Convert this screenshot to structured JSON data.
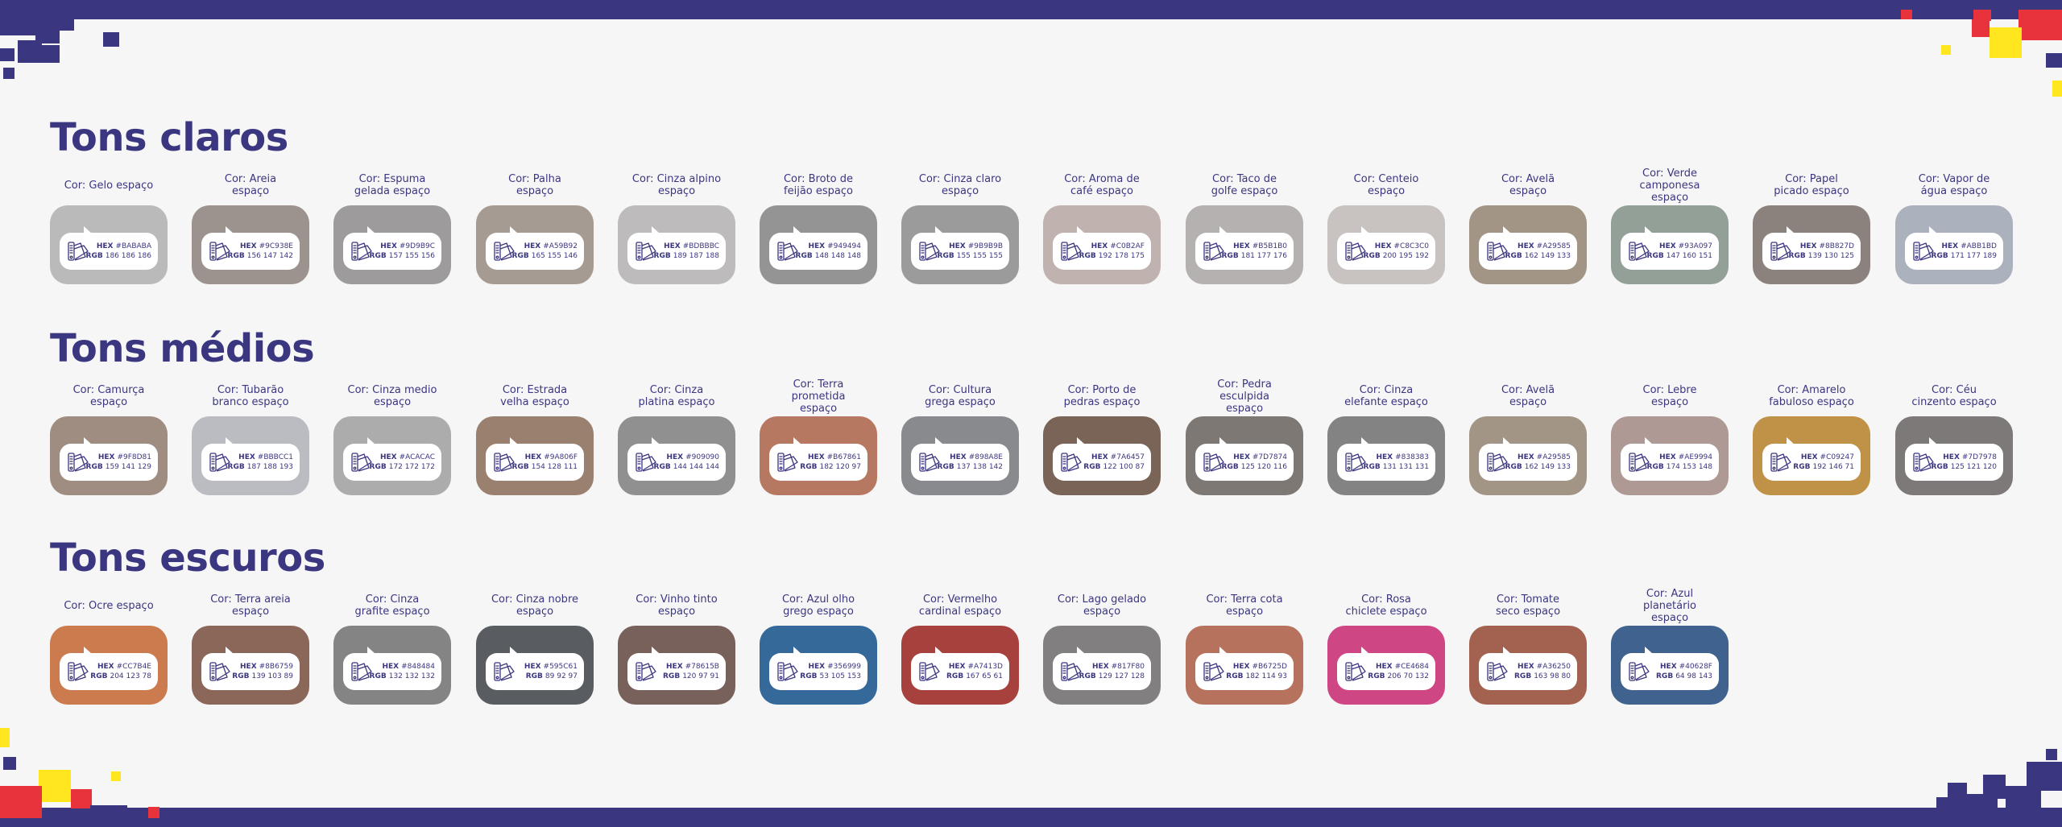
{
  "sections": [
    {
      "title": "Tons claros",
      "swatches": [
        {
          "name": "Cor: Gelo espaço",
          "hex": "#BABABA",
          "rgb": "186 186 186",
          "color": "#BABABA"
        },
        {
          "name": "Cor: Areia espaço",
          "hex": "#9C938E",
          "rgb": "156 147 142",
          "color": "#9C938E"
        },
        {
          "name": "Cor: Espuma gelada espaço",
          "hex": "#9D9B9C",
          "rgb": "157 155 156",
          "color": "#9D9B9C"
        },
        {
          "name": "Cor: Palha espaço",
          "hex": "#A59B92",
          "rgb": "165 155 146",
          "color": "#A59B92"
        },
        {
          "name": "Cor: Cinza alpino espaço",
          "hex": "#BDBBBC",
          "rgb": "189 187 188",
          "color": "#BDBBBC"
        },
        {
          "name": "Cor: Broto de feijão espaço",
          "hex": "#949494",
          "rgb": "148 148 148",
          "color": "#949494"
        },
        {
          "name": "Cor: Cinza claro espaço",
          "hex": "#9B9B9B",
          "rgb": "155 155 155",
          "color": "#9B9B9B"
        },
        {
          "name": "Cor: Aroma de café espaço",
          "hex": "#C0B2AF",
          "rgb": "192 178 175",
          "color": "#C0B2AF"
        },
        {
          "name": "Cor: Taco de golfe espaço",
          "hex": "#B5B1B0",
          "rgb": "181 177 176",
          "color": "#B5B1B0"
        },
        {
          "name": "Cor: Centeio espaço",
          "hex": "#C8C3C0",
          "rgb": "200 195 192",
          "color": "#C8C3C0"
        },
        {
          "name": "Cor: Avelã espaço",
          "hex": "#A29585",
          "rgb": "162 149 133",
          "color": "#A29585"
        },
        {
          "name": "Cor: Verde camponesa espaço",
          "hex": "#93A097",
          "rgb": "147 160 151",
          "color": "#93A097"
        },
        {
          "name": "Cor: Papel picado espaço",
          "hex": "#8B827D",
          "rgb": "139 130 125",
          "color": "#8B827D"
        },
        {
          "name": "Cor: Vapor de água espaço",
          "hex": "#ABB1BD",
          "rgb": "171 177 189",
          "color": "#ABB1BD"
        }
      ]
    },
    {
      "title": "Tons médios",
      "swatches": [
        {
          "name": "Cor: Camurça espaço",
          "hex": "#9F8D81",
          "rgb": "159 141 129",
          "color": "#9F8D81"
        },
        {
          "name": "Cor: Tubarão branco espaço",
          "hex": "#BBBCC1",
          "rgb": "187 188 193",
          "color": "#BBBCC1"
        },
        {
          "name": "Cor: Cinza medio espaço",
          "hex": "#ACACAC",
          "rgb": "172 172 172",
          "color": "#ACACAC"
        },
        {
          "name": "Cor: Estrada velha espaço",
          "hex": "#9A806F",
          "rgb": "154 128 111",
          "color": "#9A806F"
        },
        {
          "name": "Cor: Cinza platina espaço",
          "hex": "#909090",
          "rgb": "144 144 144",
          "color": "#909090"
        },
        {
          "name": "Cor: Terra prometida espaço",
          "hex": "#B67861",
          "rgb": "182 120 97",
          "color": "#B67861"
        },
        {
          "name": "Cor: Cultura grega espaço",
          "hex": "#898A8E",
          "rgb": "137 138 142",
          "color": "#898A8E"
        },
        {
          "name": "Cor: Porto de pedras espaço",
          "hex": "#7A6457",
          "rgb": "122 100 87",
          "color": "#7A6457"
        },
        {
          "name": "Cor: Pedra esculpida espaço",
          "hex": "#7D7874",
          "rgb": "125 120 116",
          "color": "#7D7874"
        },
        {
          "name": "Cor: Cinza elefante espaço",
          "hex": "#838383",
          "rgb": "131 131 131",
          "color": "#838383"
        },
        {
          "name": "Cor: Avelã espaço",
          "hex": "#A29585",
          "rgb": "162 149 133",
          "color": "#A29585"
        },
        {
          "name": "Cor: Lebre espaço",
          "hex": "#AE9994",
          "rgb": "174 153 148",
          "color": "#AE9994"
        },
        {
          "name": "Cor: Amarelo fabuloso espaço",
          "hex": "#C09247",
          "rgb": "192 146 71",
          "color": "#C09247"
        },
        {
          "name": "Cor: Céu cinzento espaço",
          "hex": "#7D7978",
          "rgb": "125 121 120",
          "color": "#7D7978"
        }
      ]
    },
    {
      "title": "Tons escuros",
      "swatches": [
        {
          "name": "Cor: Ocre espaço",
          "hex": "#CC7B4E",
          "rgb": "204 123 78",
          "color": "#CC7B4E"
        },
        {
          "name": "Cor: Terra areia espaço",
          "hex": "#8B6759",
          "rgb": "139 103 89",
          "color": "#8B6759"
        },
        {
          "name": "Cor: Cinza grafite espaço",
          "hex": "#848484",
          "rgb": "132 132 132",
          "color": "#848484"
        },
        {
          "name": "Cor: Cinza nobre espaço",
          "hex": "#595C61",
          "rgb": "89 92 97",
          "color": "#595C61"
        },
        {
          "name": "Cor: Vinho tinto espaço",
          "hex": "#78615B",
          "rgb": "120 97 91",
          "color": "#78615B"
        },
        {
          "name": "Cor: Azul olho grego espaço",
          "hex": "#356999",
          "rgb": "53 105 153",
          "color": "#356999"
        },
        {
          "name": "Cor: Vermelho cardinal espaço",
          "hex": "#A7413D",
          "rgb": "167 65 61",
          "color": "#A7413D"
        },
        {
          "name": "Cor: Lago gelado espaço",
          "hex": "#817F80",
          "rgb": "129 127 128",
          "color": "#817F80"
        },
        {
          "name": "Cor: Terra cota espaço",
          "hex": "#B6725D",
          "rgb": "182 114 93",
          "color": "#B6725D"
        },
        {
          "name": "Cor: Rosa chiclete espaço",
          "hex": "#CE4684",
          "rgb": "206 70 132",
          "color": "#CE4684"
        },
        {
          "name": "Cor: Tomate seco espaço",
          "hex": "#A36250",
          "rgb": "163 98 80",
          "color": "#A36250"
        },
        {
          "name": "Cor: Azul planetário espaço",
          "hex": "#40628F",
          "rgb": "64 98 143",
          "color": "#40628F"
        }
      ]
    }
  ],
  "labels": {
    "hex": "HEX",
    "rgb": "RGB"
  },
  "colors": {
    "primary": "#3B3680",
    "accent_red": "#E8323C",
    "accent_yellow": "#FFE61E",
    "background": "#F6F6F7"
  }
}
